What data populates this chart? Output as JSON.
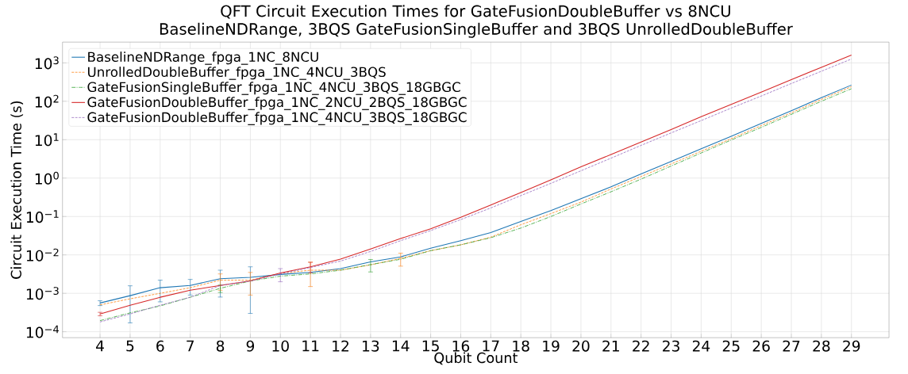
{
  "chart_data": {
    "type": "line",
    "title": "QFT Circuit Execution Times for GateFusionDoubleBuffer vs 8NCU BaselineNDRange, 3BQS GateFusionSingleBuffer and 3BQS UnrolledDoubleBuffer",
    "xlabel": "Qubit Count",
    "ylabel": "Circuit Execution Time (s)",
    "x": [
      4,
      5,
      6,
      7,
      8,
      9,
      10,
      11,
      12,
      13,
      14,
      15,
      16,
      17,
      18,
      19,
      20,
      21,
      22,
      23,
      24,
      25,
      26,
      27,
      28,
      29
    ],
    "series": [
      {
        "name": "BaselineNDRange_fpga_1NC_8NCU",
        "color": "#1f77b4",
        "line_style": "solid",
        "values": [
          0.00056,
          0.00087,
          0.0014,
          0.0016,
          0.0024,
          0.0026,
          0.0031,
          0.0035,
          0.0044,
          0.0066,
          0.0089,
          0.015,
          0.0235,
          0.038,
          0.074,
          0.143,
          0.29,
          0.59,
          1.28,
          2.7,
          5.8,
          12.2,
          26.4,
          57,
          124,
          264
        ],
        "errors": [
          8e-05,
          0.0007,
          0.0008,
          0.0007,
          0.0016,
          0.0023,
          null,
          null,
          null,
          null,
          null,
          null,
          null,
          null,
          null,
          null,
          null,
          null,
          null,
          null,
          null,
          null,
          null,
          null,
          null,
          null
        ]
      },
      {
        "name": "UnrolledDoubleBuffer_fpga_1NC_4NCU_3BQS",
        "color": "#ff7f0e",
        "line_style": "dashed",
        "values": [
          0.0005,
          0.00072,
          0.001,
          0.0014,
          0.0022,
          0.0022,
          0.0033,
          0.004,
          0.004,
          0.0055,
          0.0081,
          0.0129,
          0.0183,
          0.029,
          0.061,
          0.119,
          0.237,
          0.52,
          1.1,
          2.33,
          5.0,
          10.6,
          23.3,
          50,
          112,
          240
        ],
        "errors": [
          null,
          null,
          null,
          null,
          0.001,
          0.0013,
          null,
          0.0025,
          null,
          null,
          0.003,
          null,
          null,
          null,
          null,
          null,
          null,
          null,
          null,
          null,
          null,
          null,
          null,
          null,
          null,
          null
        ]
      },
      {
        "name": "GateFusionSingleBuffer_fpga_1NC_4NCU_3BQS_18GBGC",
        "color": "#2ca02c",
        "line_style": "dashdot",
        "values": [
          0.000195,
          0.00031,
          0.00047,
          0.00079,
          0.00135,
          0.0021,
          0.0028,
          0.0032,
          0.004,
          0.0056,
          0.0077,
          0.0129,
          0.0183,
          0.028,
          0.05,
          0.1,
          0.212,
          0.44,
          0.94,
          2.06,
          4.5,
          9.8,
          20.9,
          45.7,
          100,
          212
        ],
        "errors": [
          null,
          null,
          null,
          null,
          0.0003,
          null,
          null,
          null,
          null,
          0.002,
          null,
          null,
          null,
          null,
          null,
          null,
          null,
          null,
          null,
          null,
          null,
          null,
          null,
          null,
          null,
          null
        ]
      },
      {
        "name": "GateFusionDoubleBuffer_fpga_1NC_2NCU_2BQS_18GBGC",
        "color": "#d62728",
        "line_style": "solid",
        "values": [
          0.00029,
          0.00049,
          0.00079,
          0.0012,
          0.0016,
          0.0021,
          0.0034,
          0.0049,
          0.0078,
          0.0143,
          0.0267,
          0.048,
          0.095,
          0.2,
          0.42,
          0.9,
          1.96,
          4.1,
          8.7,
          18.4,
          39.7,
          83,
          173,
          367,
          765,
          1600
        ],
        "errors": [
          3e-05,
          null,
          null,
          null,
          null,
          null,
          null,
          0.0015,
          null,
          null,
          null,
          null,
          null,
          null,
          null,
          null,
          null,
          null,
          null,
          null,
          null,
          null,
          null,
          null,
          null,
          null
        ]
      },
      {
        "name": "GateFusionDoubleBuffer_fpga_1NC_4NCU_3BQS_18GBGC",
        "color": "#9467bd",
        "line_style": "dashed",
        "values": [
          0.00018,
          0.00029,
          0.00049,
          0.00079,
          0.0016,
          0.0021,
          0.0032,
          0.0047,
          0.0069,
          0.0123,
          0.0235,
          0.043,
          0.083,
          0.167,
          0.35,
          0.73,
          1.55,
          3.3,
          7.1,
          15.0,
          31.4,
          66.5,
          137,
          290,
          605,
          1260
        ],
        "errors": [
          null,
          null,
          null,
          null,
          null,
          null,
          0.0012,
          null,
          null,
          null,
          null,
          null,
          null,
          null,
          null,
          null,
          null,
          null,
          null,
          null,
          null,
          null,
          null,
          null,
          null,
          null
        ]
      }
    ],
    "xlim": [
      2.75,
      30.25
    ],
    "ylim": [
      7e-05,
      3470
    ],
    "log": true,
    "xticks": [
      4,
      5,
      6,
      7,
      8,
      9,
      10,
      11,
      12,
      13,
      14,
      15,
      16,
      17,
      18,
      19,
      20,
      21,
      22,
      23,
      24,
      25,
      26,
      27,
      28,
      29
    ],
    "yticks": [
      {
        "value": 0.0001,
        "label": "10$^{−4}$"
      },
      {
        "value": 0.001,
        "label": "10$^{−3}$"
      },
      {
        "value": 0.01,
        "label": "10$^{−2}$"
      },
      {
        "value": 0.1,
        "label": "10$^{−1}$"
      },
      {
        "value": 1,
        "label": "10$^{0}$"
      },
      {
        "value": 10,
        "label": "10$^{1}$"
      },
      {
        "value": 100,
        "label": "10$^{2}$"
      },
      {
        "value": 1000,
        "label": "10$^{3}$"
      }
    ],
    "grid": true,
    "legend": "top left"
  }
}
